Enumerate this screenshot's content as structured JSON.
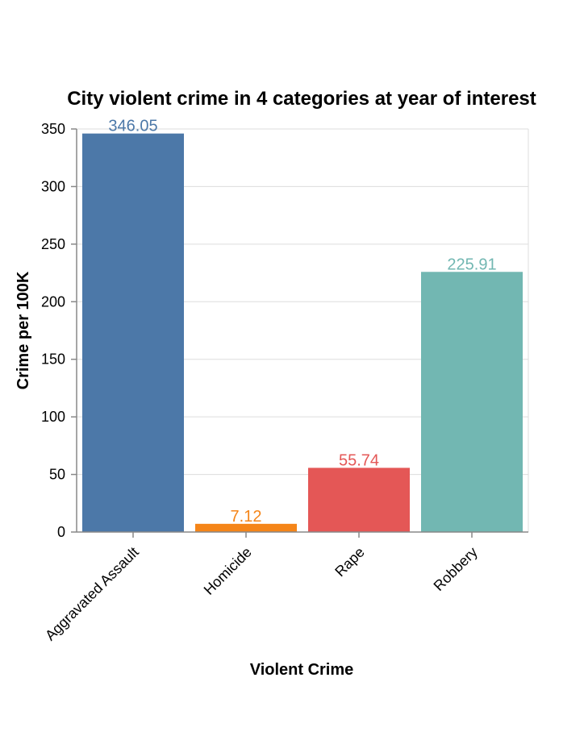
{
  "chart_data": {
    "type": "bar",
    "title": "City violent crime in 4 categories at year of interest",
    "xlabel": "Violent Crime",
    "ylabel": "Crime per 100K",
    "categories": [
      "Aggravated Assault",
      "Homicide",
      "Rape",
      "Robbery"
    ],
    "values": [
      346.05,
      7.12,
      55.74,
      225.91
    ],
    "value_labels": [
      "346.05",
      "7.12",
      "55.74",
      "225.91"
    ],
    "colors": [
      "#4c78a8",
      "#f58518",
      "#e45756",
      "#72b7b2"
    ],
    "ylim": [
      0,
      350
    ],
    "yticks": [
      0,
      50,
      100,
      150,
      200,
      250,
      300,
      350
    ],
    "grid": true,
    "legend": "none"
  }
}
